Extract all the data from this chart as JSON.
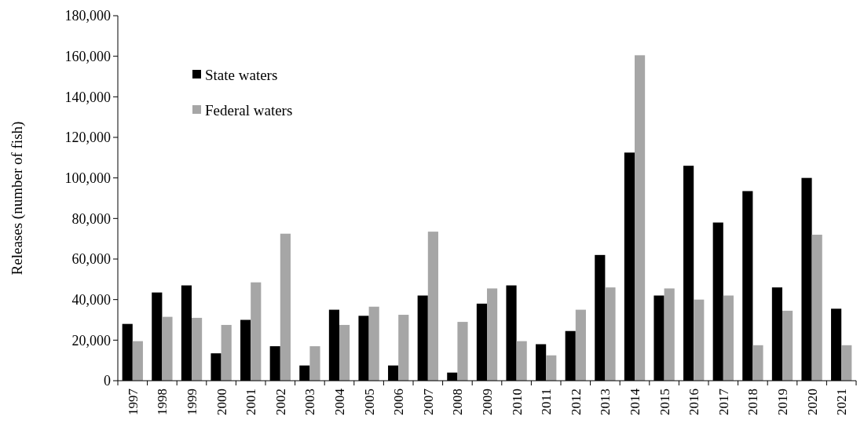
{
  "chart_data": {
    "type": "bar",
    "ylabel": "Releases (number of fish)",
    "categories": [
      "1997",
      "1998",
      "1999",
      "2000",
      "2001",
      "2002",
      "2003",
      "2004",
      "2005",
      "2006",
      "2007",
      "2008",
      "2009",
      "2010",
      "2011",
      "2012",
      "2013",
      "2014",
      "2015",
      "2016",
      "2017",
      "2018",
      "2019",
      "2020",
      "2021"
    ],
    "series": [
      {
        "name": "State waters",
        "color": "#000000",
        "values": [
          28000,
          43500,
          47000,
          13500,
          30000,
          17000,
          7500,
          35000,
          32000,
          7500,
          42000,
          4000,
          38000,
          47000,
          18000,
          24500,
          62000,
          112500,
          42000,
          106000,
          78000,
          93500,
          46000,
          100000,
          35500
        ]
      },
      {
        "name": "Federal waters",
        "color": "#a6a6a6",
        "values": [
          19500,
          31500,
          31000,
          27500,
          48500,
          72500,
          17000,
          27500,
          36500,
          32500,
          73500,
          29000,
          45500,
          19500,
          12500,
          35000,
          46000,
          160500,
          45500,
          40000,
          42000,
          17500,
          34500,
          72000,
          17500
        ]
      }
    ],
    "ylim": [
      0,
      180000
    ],
    "yticks": [
      {
        "value": 0,
        "label": "0"
      },
      {
        "value": 20000,
        "label": "20,000"
      },
      {
        "value": 40000,
        "label": "40,000"
      },
      {
        "value": 60000,
        "label": "60,000"
      },
      {
        "value": 80000,
        "label": "80,000"
      },
      {
        "value": 100000,
        "label": "100,000"
      },
      {
        "value": 120000,
        "label": "120,000"
      },
      {
        "value": 140000,
        "label": "140,000"
      },
      {
        "value": 160000,
        "label": "160,000"
      },
      {
        "value": 180000,
        "label": "180,000"
      }
    ],
    "grid": false,
    "legend": "top left"
  }
}
